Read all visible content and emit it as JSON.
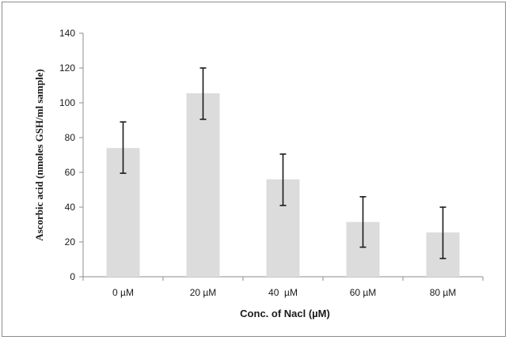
{
  "chart_data": {
    "type": "bar",
    "categories": [
      "0 µM",
      "20 µM",
      "40  µM",
      "60 µM",
      "80 µM"
    ],
    "values": [
      74,
      105.5,
      56,
      31.5,
      25.5
    ],
    "error_low": [
      59.5,
      90.5,
      41,
      17,
      10.5
    ],
    "error_high": [
      89,
      120,
      70.5,
      46,
      40
    ],
    "xlabel": "Conc. of Nacl (µM)",
    "ylabel": "Ascorbic acid (nmoles GSH/ml sample)",
    "ylim": [
      0,
      140
    ],
    "yticks": [
      0,
      20,
      40,
      60,
      80,
      100,
      120,
      140
    ],
    "grid": false,
    "legend": "none",
    "bar_color": "#dcdcdc",
    "error_bar_color": "#1a1a1a",
    "axis_color": "#8c8c8c"
  }
}
